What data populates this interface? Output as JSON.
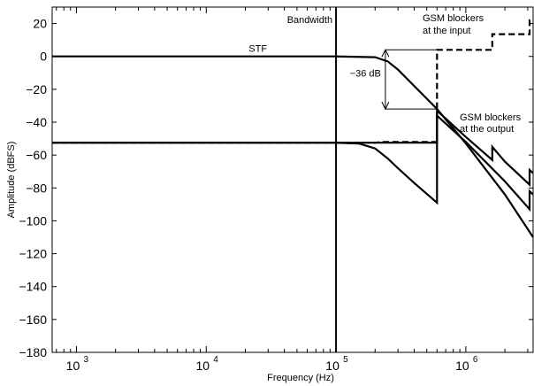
{
  "chart_data": {
    "type": "line",
    "xscale": "log",
    "xlim": [
      650,
      3300000
    ],
    "ylim": [
      -180,
      30
    ],
    "grid": false,
    "xlabel": "Frequency (Hz)",
    "ylabel": "Amplitude (dBFS)",
    "x_ticks": [
      {
        "value": 1000,
        "base": "10",
        "exp": "3"
      },
      {
        "value": 10000,
        "base": "10",
        "exp": "4"
      },
      {
        "value": 100000,
        "base": "10",
        "exp": "5"
      },
      {
        "value": 1000000,
        "base": "10",
        "exp": "6"
      }
    ],
    "y_ticks": [
      20,
      0,
      -20,
      -40,
      -60,
      -80,
      -100,
      -120,
      -140,
      -160,
      -180
    ],
    "series": [
      {
        "name": "STF",
        "style": "solid",
        "x": [
          650,
          100000,
          200000,
          250000,
          300000,
          400000,
          600000,
          1000000,
          2000000,
          3300000
        ],
        "y": [
          0,
          0,
          -0.5,
          -3,
          -8,
          -18,
          -32,
          -53,
          -84,
          -110
        ]
      },
      {
        "style": "dashed",
        "x": [
          650,
          200000,
          230000,
          600000,
          600000,
          1600000,
          1600000,
          3100000,
          3100000,
          3300000
        ],
        "y": [
          -52.5,
          -52.5,
          -52,
          -52,
          4,
          4,
          13.5,
          13.5,
          22,
          22
        ]
      },
      {
        "style": "solid",
        "x": [
          650,
          100000,
          150000,
          200000,
          250000,
          300000,
          400000,
          600000,
          600000,
          1000000,
          1600000,
          1600000,
          2000000,
          3100000,
          3100000,
          3300000
        ],
        "y": [
          -52.5,
          -52.5,
          -53,
          -56,
          -62,
          -68,
          -77,
          -89,
          -33,
          -49,
          -63,
          -55,
          -64,
          -78,
          -69,
          -71
        ]
      },
      {
        "style": "solid",
        "x": [
          650,
          100000,
          200000,
          400000,
          600000,
          600000,
          1000000,
          2000000,
          3100000,
          3100000,
          3300000
        ],
        "y": [
          -52.5,
          -52.5,
          -52.5,
          -52.5,
          -52.5,
          -36,
          -52,
          -76,
          -93,
          -82,
          -84
        ]
      }
    ],
    "vlines": [
      {
        "x": 100000
      }
    ],
    "annotations": [
      {
        "text": "Bandwidth"
      },
      {
        "text": "STF"
      },
      {
        "text": "−36 dB"
      },
      {
        "lines": [
          "GSM blockers",
          "at the input"
        ]
      },
      {
        "lines": [
          "GSM blockers",
          "at the output"
        ]
      }
    ]
  }
}
